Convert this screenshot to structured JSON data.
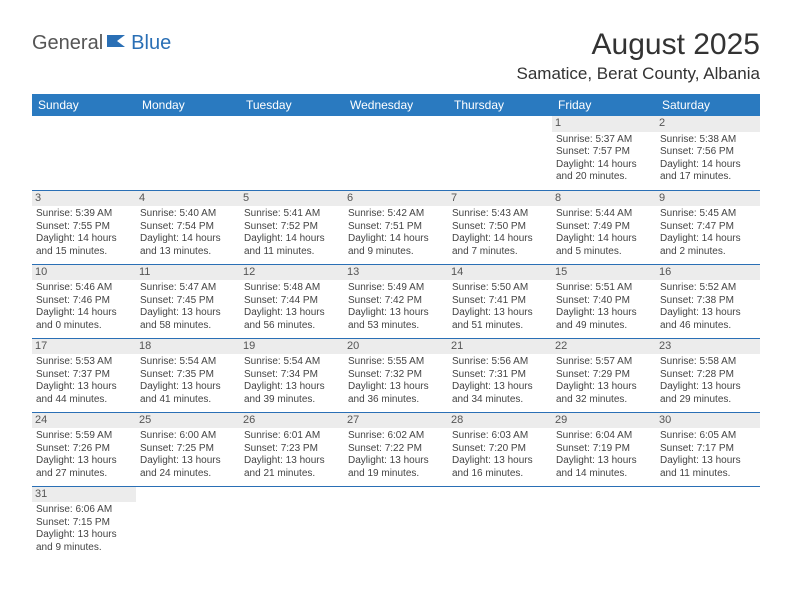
{
  "logo": {
    "part1": "General",
    "part2": "Blue"
  },
  "title": "August 2025",
  "location": "Samatice, Berat County, Albania",
  "colors": {
    "header_bg": "#2a7ac0",
    "header_fg": "#ffffff",
    "row_border": "#2a6fb5",
    "daynum_bg": "#ececec",
    "body_text": "#444444"
  },
  "days_of_week": [
    "Sunday",
    "Monday",
    "Tuesday",
    "Wednesday",
    "Thursday",
    "Friday",
    "Saturday"
  ],
  "weeks": [
    [
      null,
      null,
      null,
      null,
      null,
      {
        "n": "1",
        "sr": "Sunrise: 5:37 AM",
        "ss": "Sunset: 7:57 PM",
        "dl": "Daylight: 14 hours and 20 minutes."
      },
      {
        "n": "2",
        "sr": "Sunrise: 5:38 AM",
        "ss": "Sunset: 7:56 PM",
        "dl": "Daylight: 14 hours and 17 minutes."
      }
    ],
    [
      {
        "n": "3",
        "sr": "Sunrise: 5:39 AM",
        "ss": "Sunset: 7:55 PM",
        "dl": "Daylight: 14 hours and 15 minutes."
      },
      {
        "n": "4",
        "sr": "Sunrise: 5:40 AM",
        "ss": "Sunset: 7:54 PM",
        "dl": "Daylight: 14 hours and 13 minutes."
      },
      {
        "n": "5",
        "sr": "Sunrise: 5:41 AM",
        "ss": "Sunset: 7:52 PM",
        "dl": "Daylight: 14 hours and 11 minutes."
      },
      {
        "n": "6",
        "sr": "Sunrise: 5:42 AM",
        "ss": "Sunset: 7:51 PM",
        "dl": "Daylight: 14 hours and 9 minutes."
      },
      {
        "n": "7",
        "sr": "Sunrise: 5:43 AM",
        "ss": "Sunset: 7:50 PM",
        "dl": "Daylight: 14 hours and 7 minutes."
      },
      {
        "n": "8",
        "sr": "Sunrise: 5:44 AM",
        "ss": "Sunset: 7:49 PM",
        "dl": "Daylight: 14 hours and 5 minutes."
      },
      {
        "n": "9",
        "sr": "Sunrise: 5:45 AM",
        "ss": "Sunset: 7:47 PM",
        "dl": "Daylight: 14 hours and 2 minutes."
      }
    ],
    [
      {
        "n": "10",
        "sr": "Sunrise: 5:46 AM",
        "ss": "Sunset: 7:46 PM",
        "dl": "Daylight: 14 hours and 0 minutes."
      },
      {
        "n": "11",
        "sr": "Sunrise: 5:47 AM",
        "ss": "Sunset: 7:45 PM",
        "dl": "Daylight: 13 hours and 58 minutes."
      },
      {
        "n": "12",
        "sr": "Sunrise: 5:48 AM",
        "ss": "Sunset: 7:44 PM",
        "dl": "Daylight: 13 hours and 56 minutes."
      },
      {
        "n": "13",
        "sr": "Sunrise: 5:49 AM",
        "ss": "Sunset: 7:42 PM",
        "dl": "Daylight: 13 hours and 53 minutes."
      },
      {
        "n": "14",
        "sr": "Sunrise: 5:50 AM",
        "ss": "Sunset: 7:41 PM",
        "dl": "Daylight: 13 hours and 51 minutes."
      },
      {
        "n": "15",
        "sr": "Sunrise: 5:51 AM",
        "ss": "Sunset: 7:40 PM",
        "dl": "Daylight: 13 hours and 49 minutes."
      },
      {
        "n": "16",
        "sr": "Sunrise: 5:52 AM",
        "ss": "Sunset: 7:38 PM",
        "dl": "Daylight: 13 hours and 46 minutes."
      }
    ],
    [
      {
        "n": "17",
        "sr": "Sunrise: 5:53 AM",
        "ss": "Sunset: 7:37 PM",
        "dl": "Daylight: 13 hours and 44 minutes."
      },
      {
        "n": "18",
        "sr": "Sunrise: 5:54 AM",
        "ss": "Sunset: 7:35 PM",
        "dl": "Daylight: 13 hours and 41 minutes."
      },
      {
        "n": "19",
        "sr": "Sunrise: 5:54 AM",
        "ss": "Sunset: 7:34 PM",
        "dl": "Daylight: 13 hours and 39 minutes."
      },
      {
        "n": "20",
        "sr": "Sunrise: 5:55 AM",
        "ss": "Sunset: 7:32 PM",
        "dl": "Daylight: 13 hours and 36 minutes."
      },
      {
        "n": "21",
        "sr": "Sunrise: 5:56 AM",
        "ss": "Sunset: 7:31 PM",
        "dl": "Daylight: 13 hours and 34 minutes."
      },
      {
        "n": "22",
        "sr": "Sunrise: 5:57 AM",
        "ss": "Sunset: 7:29 PM",
        "dl": "Daylight: 13 hours and 32 minutes."
      },
      {
        "n": "23",
        "sr": "Sunrise: 5:58 AM",
        "ss": "Sunset: 7:28 PM",
        "dl": "Daylight: 13 hours and 29 minutes."
      }
    ],
    [
      {
        "n": "24",
        "sr": "Sunrise: 5:59 AM",
        "ss": "Sunset: 7:26 PM",
        "dl": "Daylight: 13 hours and 27 minutes."
      },
      {
        "n": "25",
        "sr": "Sunrise: 6:00 AM",
        "ss": "Sunset: 7:25 PM",
        "dl": "Daylight: 13 hours and 24 minutes."
      },
      {
        "n": "26",
        "sr": "Sunrise: 6:01 AM",
        "ss": "Sunset: 7:23 PM",
        "dl": "Daylight: 13 hours and 21 minutes."
      },
      {
        "n": "27",
        "sr": "Sunrise: 6:02 AM",
        "ss": "Sunset: 7:22 PM",
        "dl": "Daylight: 13 hours and 19 minutes."
      },
      {
        "n": "28",
        "sr": "Sunrise: 6:03 AM",
        "ss": "Sunset: 7:20 PM",
        "dl": "Daylight: 13 hours and 16 minutes."
      },
      {
        "n": "29",
        "sr": "Sunrise: 6:04 AM",
        "ss": "Sunset: 7:19 PM",
        "dl": "Daylight: 13 hours and 14 minutes."
      },
      {
        "n": "30",
        "sr": "Sunrise: 6:05 AM",
        "ss": "Sunset: 7:17 PM",
        "dl": "Daylight: 13 hours and 11 minutes."
      }
    ],
    [
      {
        "n": "31",
        "sr": "Sunrise: 6:06 AM",
        "ss": "Sunset: 7:15 PM",
        "dl": "Daylight: 13 hours and 9 minutes."
      },
      null,
      null,
      null,
      null,
      null,
      null
    ]
  ]
}
